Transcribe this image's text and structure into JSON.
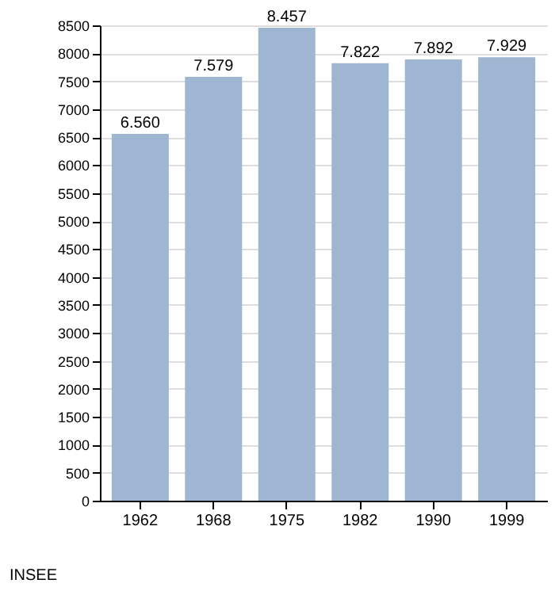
{
  "chart_data": {
    "type": "bar",
    "categories": [
      "1962",
      "1968",
      "1975",
      "1982",
      "1990",
      "1999"
    ],
    "values": [
      6560,
      7579,
      8457,
      7822,
      7892,
      7929
    ],
    "value_labels": [
      "6.560",
      "7.579",
      "8.457",
      "7.822",
      "7.892",
      "7.929"
    ],
    "color": "#9eb6d2",
    "ylim": [
      0,
      8500
    ],
    "yticks": [
      0,
      500,
      1000,
      1500,
      2000,
      2500,
      3000,
      3500,
      4000,
      4500,
      5000,
      5500,
      6000,
      6500,
      7000,
      7500,
      8000,
      8500
    ],
    "grid": "y",
    "annotations": [
      "INSEE"
    ]
  }
}
